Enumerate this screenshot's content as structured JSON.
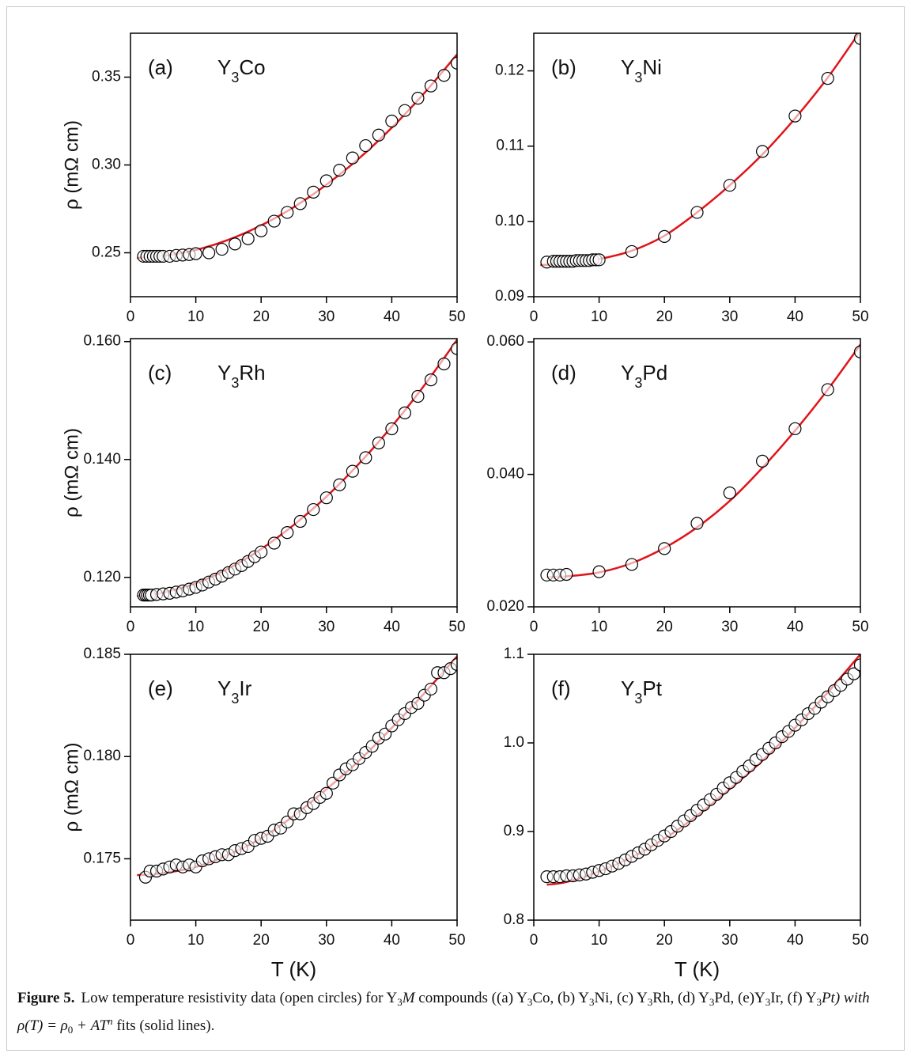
{
  "chart_data": [
    {
      "type": "scatter",
      "label": "(a)",
      "compound": [
        "Y",
        "3",
        "Co"
      ],
      "ylabel": "ρ (mΩ cm)",
      "xlim": [
        0,
        50
      ],
      "xticks": [
        0,
        10,
        20,
        30,
        40,
        50
      ],
      "ylim": [
        0.225,
        0.375
      ],
      "yticks": [
        0.25,
        {
          "value": 0.3,
          "label": "0.30"
        },
        0.35
      ],
      "series": [
        {
          "mode": "markers",
          "color": "#000000",
          "x": [
            2,
            2.5,
            3,
            3.5,
            4,
            4.5,
            5,
            6,
            7,
            8,
            9,
            10,
            12,
            14,
            16,
            18,
            20,
            22,
            24,
            26,
            28,
            30,
            32,
            34,
            36,
            38,
            40,
            42,
            44,
            46,
            48,
            50
          ],
          "values": [
            0.248,
            0.248,
            0.248,
            0.248,
            0.248,
            0.248,
            0.248,
            0.248,
            0.2485,
            0.2487,
            0.249,
            0.2495,
            0.25,
            0.252,
            0.255,
            0.258,
            0.2625,
            0.268,
            0.273,
            0.278,
            0.2845,
            0.291,
            0.297,
            0.304,
            0.311,
            0.317,
            0.325,
            0.331,
            0.338,
            0.345,
            0.351,
            0.358
          ]
        },
        {
          "mode": "line",
          "color": "#e0151b",
          "x": [
            1,
            5,
            10,
            15,
            20,
            25,
            30,
            35,
            40,
            45,
            50
          ],
          "values": [
            0.24705,
            0.2482,
            0.2516,
            0.2574,
            0.2656,
            0.276,
            0.2888,
            0.3038,
            0.3212,
            0.341,
            0.363
          ]
        }
      ]
    },
    {
      "type": "scatter",
      "label": "(b)",
      "compound": [
        "Y",
        "3",
        "Ni"
      ],
      "xlim": [
        0,
        50
      ],
      "xticks": [
        0,
        10,
        20,
        30,
        40,
        50
      ],
      "ylim": [
        0.09,
        0.125
      ],
      "yticks": [
        0.09,
        {
          "value": 0.1,
          "label": "0.10"
        },
        0.11,
        0.12
      ],
      "series": [
        {
          "mode": "markers",
          "color": "#000000",
          "x": [
            2,
            3,
            3.5,
            4,
            4.5,
            5,
            5.5,
            6,
            6.5,
            7,
            7.5,
            8,
            8.5,
            9,
            9.5,
            10,
            15,
            20,
            25,
            30,
            35,
            40,
            45,
            50
          ],
          "values": [
            0.0946,
            0.0947,
            0.0947,
            0.0947,
            0.0947,
            0.0947,
            0.0947,
            0.0947,
            0.0948,
            0.0948,
            0.0948,
            0.0948,
            0.0948,
            0.0949,
            0.0949,
            0.0949,
            0.096,
            0.098,
            0.1012,
            0.1048,
            0.1093,
            0.114,
            0.119,
            0.1243
          ]
        },
        {
          "mode": "line",
          "color": "#e0151b",
          "x": [
            1,
            5,
            10,
            15,
            20,
            25,
            30,
            35,
            40,
            45,
            50
          ],
          "values": [
            0.0942,
            0.0944,
            0.095,
            0.0961,
            0.0981,
            0.1012,
            0.1048,
            0.1089,
            0.1137,
            0.1191,
            0.1253
          ]
        }
      ]
    },
    {
      "type": "scatter",
      "label": "(c)",
      "compound": [
        "Y",
        "3",
        "Rh"
      ],
      "ylabel": "ρ (mΩ cm)",
      "xlim": [
        0,
        50
      ],
      "xticks": [
        0,
        10,
        20,
        30,
        40,
        50
      ],
      "ylim": [
        0.115,
        0.1605
      ],
      "yticks": [
        {
          "value": 0.12,
          "label": "0.120"
        },
        {
          "value": 0.14,
          "label": "0.140"
        },
        {
          "value": 0.16,
          "label": "0.160"
        }
      ],
      "series": [
        {
          "mode": "markers",
          "color": "#000000",
          "x": [
            2,
            2.3,
            2.6,
            2.9,
            3.2,
            4,
            5,
            6,
            7,
            8,
            9,
            10,
            11,
            12,
            13,
            14,
            15,
            16,
            17,
            18,
            19,
            20,
            22,
            24,
            26,
            28,
            30,
            32,
            34,
            36,
            38,
            40,
            42,
            44,
            46,
            48,
            50
          ],
          "values": [
            0.117,
            0.117,
            0.117,
            0.117,
            0.117,
            0.1171,
            0.1172,
            0.1173,
            0.1175,
            0.1177,
            0.118,
            0.1183,
            0.1187,
            0.1192,
            0.1197,
            0.1202,
            0.1208,
            0.1214,
            0.122,
            0.1227,
            0.1235,
            0.1243,
            0.1258,
            0.1276,
            0.1295,
            0.1315,
            0.1335,
            0.1357,
            0.138,
            0.1403,
            0.1428,
            0.1452,
            0.1479,
            0.1507,
            0.1535,
            0.1562,
            0.1588
          ]
        },
        {
          "mode": "line",
          "color": "#e0151b",
          "x": [
            1,
            5,
            10,
            15,
            20,
            25,
            30,
            35,
            40,
            45,
            50
          ],
          "values": [
            0.1168,
            0.1174,
            0.119,
            0.1215,
            0.1248,
            0.1289,
            0.1337,
            0.1393,
            0.1456,
            0.1526,
            0.1603
          ]
        }
      ]
    },
    {
      "type": "scatter",
      "label": "(d)",
      "compound": [
        "Y",
        "3",
        "Pd"
      ],
      "xlim": [
        0,
        50
      ],
      "xticks": [
        0,
        10,
        20,
        30,
        40,
        50
      ],
      "ylim": [
        0.02,
        0.0605
      ],
      "yticks": [
        {
          "value": 0.02,
          "label": "0.020"
        },
        {
          "value": 0.04,
          "label": "0.040"
        },
        {
          "value": 0.06,
          "label": "0.060"
        }
      ],
      "series": [
        {
          "mode": "markers",
          "color": "#000000",
          "x": [
            2,
            3,
            4,
            5,
            10,
            15,
            20,
            25,
            30,
            35,
            40,
            45,
            50
          ],
          "values": [
            0.0248,
            0.0248,
            0.0248,
            0.0249,
            0.0253,
            0.0264,
            0.0288,
            0.0326,
            0.0372,
            0.042,
            0.0469,
            0.0528,
            0.0585
          ]
        },
        {
          "mode": "line",
          "color": "#e0151b",
          "x": [
            2,
            5,
            10,
            15,
            20,
            25,
            30,
            35,
            40,
            45,
            50
          ],
          "values": [
            0.0245,
            0.0246,
            0.0252,
            0.0266,
            0.0289,
            0.032,
            0.036,
            0.041,
            0.0466,
            0.0528,
            0.0596
          ]
        }
      ]
    },
    {
      "type": "scatter",
      "label": "(e)",
      "compound": [
        "Y",
        "3",
        "Ir"
      ],
      "ylabel": "ρ (mΩ cm)",
      "xlabel": "T (K)",
      "xlim": [
        0,
        50
      ],
      "xticks": [
        0,
        10,
        20,
        30,
        40,
        50
      ],
      "ylim": [
        0.172,
        0.185
      ],
      "yticks": [
        0.175,
        {
          "value": 0.18,
          "label": "0.180"
        },
        0.185
      ],
      "series": [
        {
          "mode": "markers",
          "color": "#000000",
          "x": [
            2.3,
            3,
            4,
            5,
            6,
            7,
            8,
            9,
            10,
            11,
            12,
            13,
            14,
            15,
            16,
            17,
            18,
            19,
            20,
            21,
            22,
            23,
            24,
            25,
            26,
            27,
            28,
            29,
            30,
            31,
            32,
            33,
            34,
            35,
            36,
            37,
            38,
            39,
            40,
            41,
            42,
            43,
            44,
            45,
            46,
            47,
            48,
            49,
            50
          ],
          "values": [
            0.1741,
            0.1744,
            0.1744,
            0.1745,
            0.1746,
            0.1747,
            0.1746,
            0.1747,
            0.1746,
            0.1749,
            0.175,
            0.1751,
            0.1752,
            0.1752,
            0.1754,
            0.1755,
            0.1756,
            0.1759,
            0.176,
            0.1761,
            0.1764,
            0.1765,
            0.1768,
            0.1772,
            0.1772,
            0.1775,
            0.1777,
            0.178,
            0.1782,
            0.1787,
            0.1791,
            0.1794,
            0.1796,
            0.1799,
            0.1802,
            0.1805,
            0.1809,
            0.1811,
            0.1815,
            0.1818,
            0.1821,
            0.1824,
            0.1826,
            0.183,
            0.1833,
            0.1841,
            0.1841,
            0.1843,
            0.1845
          ]
        },
        {
          "mode": "line",
          "color": "#e0151b",
          "x": [
            1,
            5,
            10,
            15,
            20,
            25,
            30,
            35,
            40,
            45,
            50
          ],
          "values": [
            0.1742,
            0.1743,
            0.1746,
            0.1752,
            0.176,
            0.1771,
            0.1784,
            0.1798,
            0.1814,
            0.1831,
            0.1849
          ]
        }
      ]
    },
    {
      "type": "scatter",
      "label": "(f)",
      "compound": [
        "Y",
        "3",
        "Pt"
      ],
      "xlabel": "T (K)",
      "xlim": [
        0,
        50
      ],
      "xticks": [
        0,
        10,
        20,
        30,
        40,
        50
      ],
      "ylim": [
        0.8,
        1.1
      ],
      "yticks": [
        0.8,
        0.9,
        {
          "value": 1,
          "label": "1.0"
        },
        1.1
      ],
      "series": [
        {
          "mode": "markers",
          "color": "#000000",
          "x": [
            2,
            3,
            4,
            5,
            6,
            7,
            8,
            9,
            10,
            11,
            12,
            13,
            14,
            15,
            16,
            17,
            18,
            19,
            20,
            21,
            22,
            23,
            24,
            25,
            26,
            27,
            28,
            29,
            30,
            31,
            32,
            33,
            34,
            35,
            36,
            37,
            38,
            39,
            40,
            41,
            42,
            43,
            44,
            45,
            46,
            47,
            48,
            49,
            50
          ],
          "values": [
            0.849,
            0.849,
            0.849,
            0.85,
            0.85,
            0.851,
            0.852,
            0.854,
            0.856,
            0.858,
            0.861,
            0.864,
            0.868,
            0.872,
            0.876,
            0.88,
            0.885,
            0.89,
            0.895,
            0.9,
            0.906,
            0.912,
            0.918,
            0.924,
            0.93,
            0.936,
            0.942,
            0.949,
            0.955,
            0.961,
            0.968,
            0.974,
            0.981,
            0.987,
            0.994,
            1.0,
            1.007,
            1.013,
            1.02,
            1.026,
            1.033,
            1.039,
            1.046,
            1.052,
            1.059,
            1.065,
            1.072,
            1.078,
            1.088
          ]
        },
        {
          "mode": "line",
          "color": "#e0151b",
          "x": [
            2,
            5,
            10,
            15,
            20,
            25,
            30,
            35,
            40,
            45,
            50
          ],
          "values": [
            0.84,
            0.843,
            0.855,
            0.871,
            0.892,
            0.918,
            0.948,
            0.98,
            1.017,
            1.057,
            1.1
          ]
        }
      ]
    }
  ],
  "caption": {
    "label": "Figure 5.",
    "parts": [
      "Low temperature resistivity data (open circles) for Y",
      "3",
      "M",
      " compounds ((a) Y",
      "3",
      "Co, (b) Y",
      "3",
      "Ni, (c) Y",
      "3",
      "Rh, (d) Y",
      "3",
      "Pd, (e)Y",
      "3",
      "Ir, (f) Y",
      "3",
      "Pt) with ρ(T) = ρ",
      "0",
      " + AT",
      "n",
      " fits (solid lines)."
    ]
  }
}
